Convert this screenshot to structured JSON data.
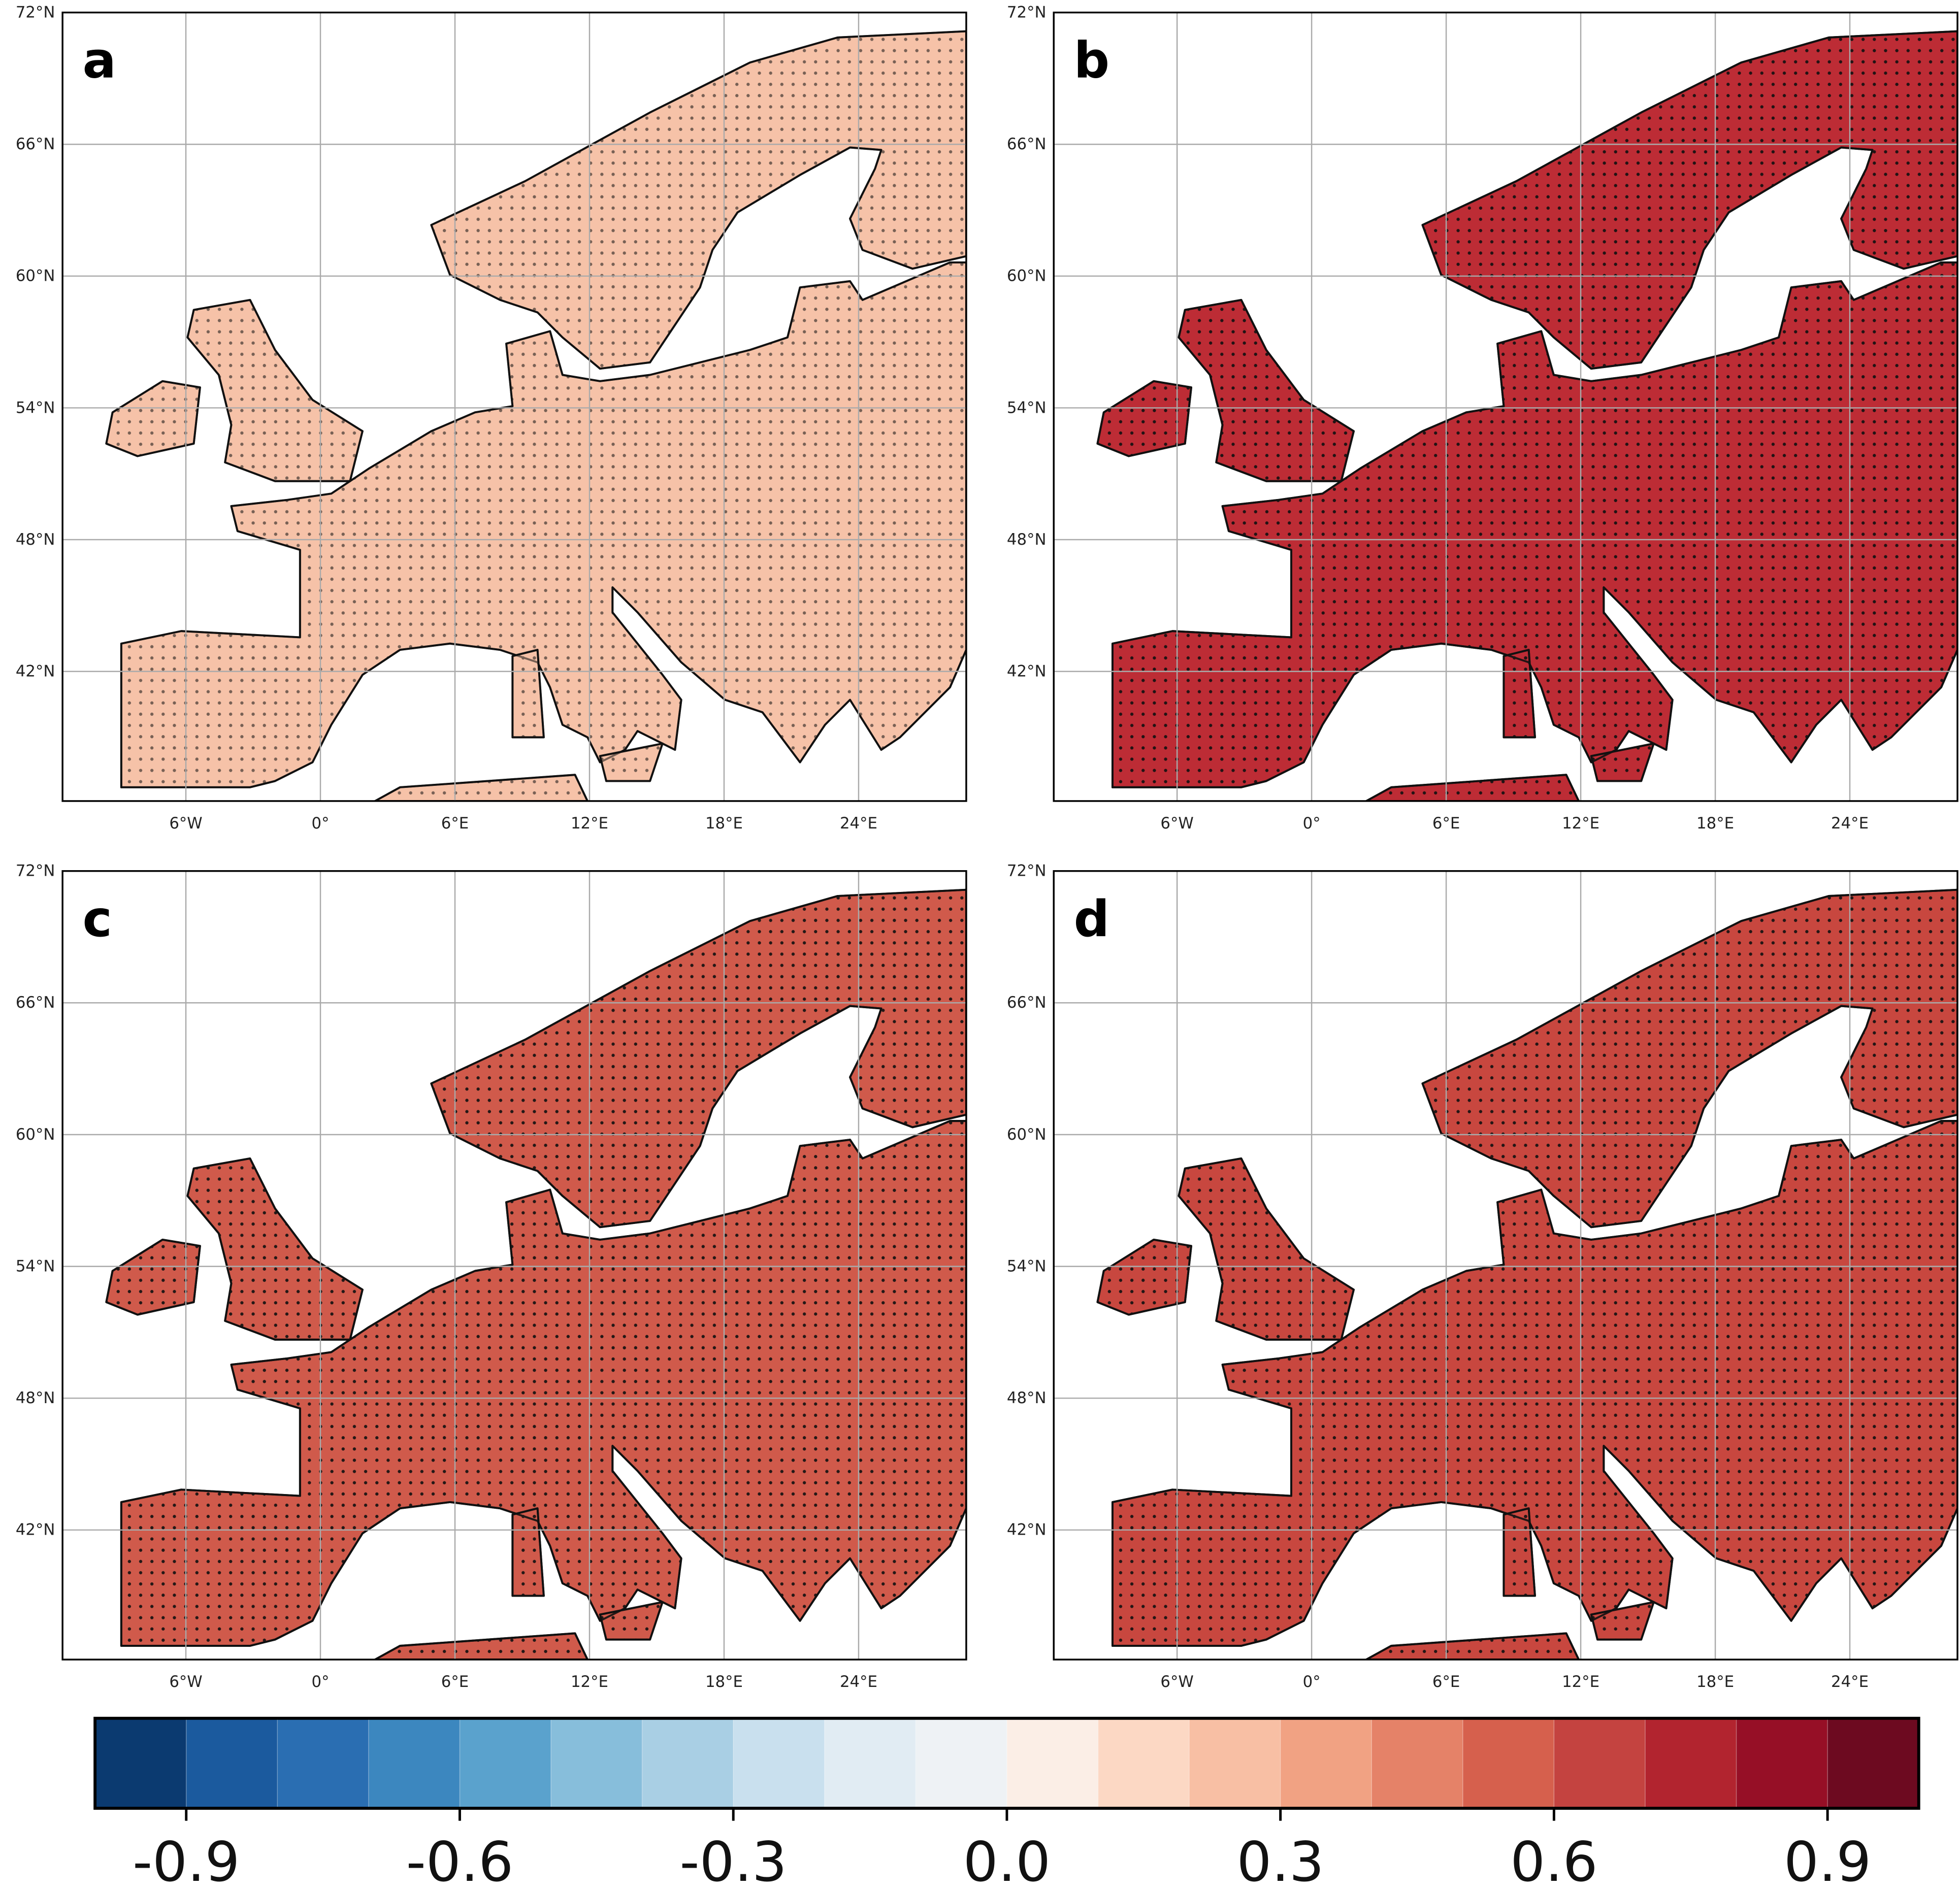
{
  "map": {
    "xlim": [
      -11.5,
      28.8
    ],
    "ylim": [
      36.1,
      72
    ],
    "xticks": [
      {
        "value": -6,
        "label": "6°W"
      },
      {
        "value": 0,
        "label": "0°"
      },
      {
        "value": 6,
        "label": "6°E"
      },
      {
        "value": 12,
        "label": "12°E"
      },
      {
        "value": 18,
        "label": "18°E"
      },
      {
        "value": 24,
        "label": "24°E"
      }
    ],
    "yticks": [
      {
        "value": 42,
        "label": "42°N"
      },
      {
        "value": 48,
        "label": "48°N"
      },
      {
        "value": 54,
        "label": "54°N"
      },
      {
        "value": 60,
        "label": "60°N"
      },
      {
        "value": 66,
        "label": "66°N"
      },
      {
        "value": 72,
        "label": "72°N"
      }
    ],
    "grid": true
  },
  "panels": [
    {
      "label": "a",
      "color": "#f6c2a8"
    },
    {
      "label": "b",
      "color": "#bd2c35"
    },
    {
      "label": "c",
      "color": "#d05a4b"
    },
    {
      "label": "d",
      "color": "#c8473f"
    }
  ],
  "colorbar": {
    "lim": [
      -1,
      1
    ],
    "colors": [
      "#0b3a70",
      "#1b5a9e",
      "#2a6eb2",
      "#3c87bf",
      "#5aa2cd",
      "#87bedb",
      "#a9cfe4",
      "#c9e0ee",
      "#e1ecf3",
      "#eef2f5",
      "#fbeee6",
      "#fcd8c4",
      "#f8bfa4",
      "#f1a283",
      "#e58268",
      "#d6604d",
      "#c44340",
      "#b2242f",
      "#960f26",
      "#6d0a20"
    ],
    "ticks": [
      -0.9,
      -0.6,
      -0.3,
      {
        "value": 0,
        "label": "0.0"
      },
      0.3,
      0.6,
      0.9
    ]
  }
}
